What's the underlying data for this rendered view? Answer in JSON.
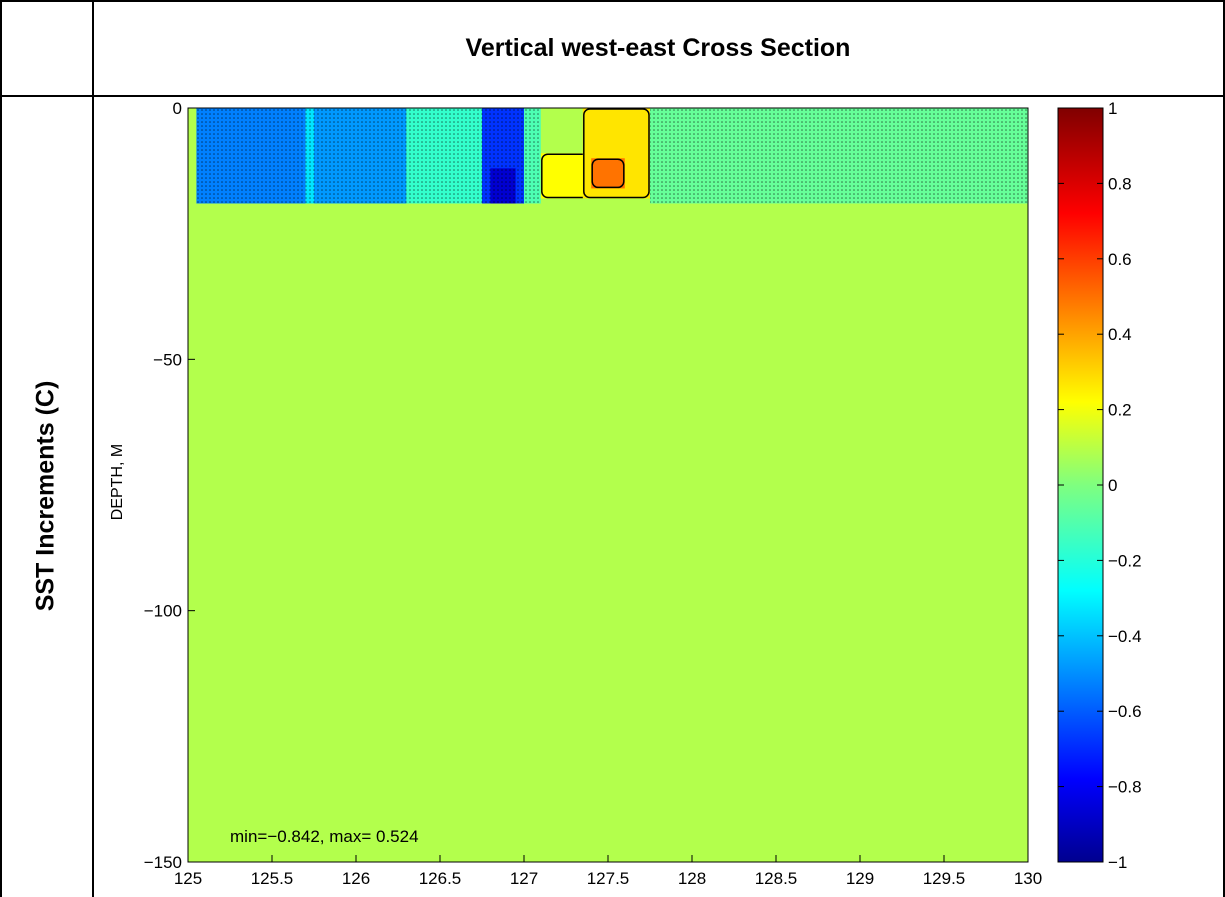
{
  "panel": {
    "title": "Vertical west-east Cross Section",
    "row_label": "SST Increments (C)"
  },
  "chart_data": {
    "type": "heatmap",
    "title": "Vertical west-east Cross Section",
    "xlabel": "",
    "ylabel": "DEPTH, M",
    "xlim": [
      125,
      130
    ],
    "ylim": [
      -150,
      0
    ],
    "x_ticks": [
      {
        "value": 125,
        "label": "125"
      },
      {
        "value": 125.5,
        "label": "125.5"
      },
      {
        "value": 126,
        "label": "126"
      },
      {
        "value": 126.5,
        "label": "126.5"
      },
      {
        "value": 127,
        "label": "127"
      },
      {
        "value": 127.5,
        "label": "127.5"
      },
      {
        "value": 128,
        "label": "128"
      },
      {
        "value": 128.5,
        "label": "128.5"
      },
      {
        "value": 129,
        "label": "129"
      },
      {
        "value": 129.5,
        "label": "129.5"
      },
      {
        "value": 130,
        "label": "130"
      }
    ],
    "y_ticks": [
      {
        "value": 0,
        "label": "0"
      },
      {
        "value": -50,
        "label": "−50"
      },
      {
        "value": -100,
        "label": "−100"
      },
      {
        "value": -150,
        "label": "−150"
      }
    ],
    "colorbar": {
      "range": [
        -1,
        1
      ],
      "ticks": [
        {
          "value": 1,
          "label": "1"
        },
        {
          "value": 0.8,
          "label": "0.8"
        },
        {
          "value": 0.6,
          "label": "0.6"
        },
        {
          "value": 0.4,
          "label": "0.4"
        },
        {
          "value": 0.2,
          "label": "0.2"
        },
        {
          "value": 0,
          "label": "0"
        },
        {
          "value": -0.2,
          "label": "−0.2"
        },
        {
          "value": -0.4,
          "label": "−0.4"
        },
        {
          "value": -0.6,
          "label": "−0.6"
        },
        {
          "value": -0.8,
          "label": "−0.8"
        },
        {
          "value": -1,
          "label": "−1"
        }
      ],
      "colormap": "jet"
    },
    "annotation": "min=−0.842, max= 0.524",
    "field_min": -0.842,
    "field_max": 0.524,
    "background_value": 0.1,
    "anomalies": [
      {
        "x_range": [
          125.05,
          125.7
        ],
        "depth_range": [
          0,
          -19
        ],
        "value": -0.5
      },
      {
        "x_range": [
          125.7,
          125.75
        ],
        "depth_range": [
          0,
          -19
        ],
        "value": -0.3
      },
      {
        "x_range": [
          125.75,
          126.3
        ],
        "depth_range": [
          0,
          -19
        ],
        "value": -0.45
      },
      {
        "x_range": [
          126.3,
          126.75
        ],
        "depth_range": [
          0,
          -19
        ],
        "value": -0.15
      },
      {
        "x_range": [
          126.75,
          127.0
        ],
        "depth_range": [
          0,
          -19
        ],
        "value": -0.65
      },
      {
        "x_range": [
          126.8,
          126.95
        ],
        "depth_range": [
          -12,
          -19
        ],
        "value": -0.842
      },
      {
        "x_range": [
          127.0,
          127.1
        ],
        "depth_range": [
          0,
          -19
        ],
        "value": -0.1
      },
      {
        "x_range": [
          127.1,
          127.6
        ],
        "depth_range": [
          -9,
          -18
        ],
        "value": 0.25
      },
      {
        "x_range": [
          127.35,
          127.75
        ],
        "depth_range": [
          0,
          -18
        ],
        "value": 0.3
      },
      {
        "x_range": [
          127.4,
          127.6
        ],
        "depth_range": [
          -10,
          -16
        ],
        "value": 0.524
      },
      {
        "x_range": [
          127.75,
          130.0
        ],
        "depth_range": [
          0,
          -19
        ],
        "value": -0.05
      }
    ]
  }
}
